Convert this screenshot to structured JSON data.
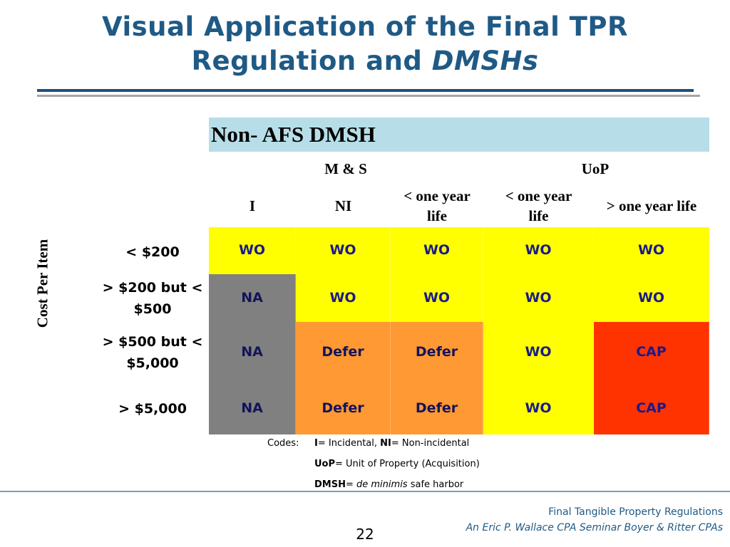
{
  "slide": {
    "title_line1": "Visual Application of the Final TPR",
    "title_line2_prefix": "Regulation and ",
    "title_line2_italic": "DMSHs"
  },
  "table": {
    "header": "Non- AFS DMSH",
    "group_ms": "M & S",
    "group_uop": "UoP",
    "col_i": "I",
    "col_ni": "NI",
    "col_ms_lt_line1": "< one year",
    "col_ms_lt_line2": "life",
    "col_uop_lt_line1": "< one year",
    "col_uop_lt_line2": "life",
    "col_uop_gt": "> one year life",
    "y_axis_label": "Cost Per Item",
    "rows": [
      {
        "label_line1": "< $200",
        "label_line2": "",
        "cells": [
          {
            "text": "WO",
            "color": "#ffff00"
          },
          {
            "text": "WO",
            "color": "#ffff00"
          },
          {
            "text": "WO",
            "color": "#ffff00"
          },
          {
            "text": "WO",
            "color": "#ffff00"
          },
          {
            "text": "WO",
            "color": "#ffff00"
          }
        ]
      },
      {
        "label_line1": "> $200 but <",
        "label_line2": "$500",
        "cells": [
          {
            "text": "NA",
            "color": "#808080"
          },
          {
            "text": "WO",
            "color": "#ffff00"
          },
          {
            "text": "WO",
            "color": "#ffff00"
          },
          {
            "text": "WO",
            "color": "#ffff00"
          },
          {
            "text": "WO",
            "color": "#ffff00"
          }
        ]
      },
      {
        "label_line1": "> $500 but <",
        "label_line2": "$5,000",
        "cells": [
          {
            "text": "NA",
            "color": "#808080"
          },
          {
            "text": "Defer",
            "color": "#ff9933"
          },
          {
            "text": "Defer",
            "color": "#ff9933"
          },
          {
            "text": "WO",
            "color": "#ffff00"
          },
          {
            "text": "CAP",
            "color": "#ff3300"
          }
        ]
      },
      {
        "label_line1": "> $5,000",
        "label_line2": "",
        "cells": [
          {
            "text": "NA",
            "color": "#808080"
          },
          {
            "text": "Defer",
            "color": "#ff9933"
          },
          {
            "text": "Defer",
            "color": "#ff9933"
          },
          {
            "text": "WO",
            "color": "#ffff00"
          },
          {
            "text": "CAP",
            "color": "#ff3300"
          }
        ]
      }
    ]
  },
  "legend": {
    "codes_label": "Codes:",
    "i_abbr": "I",
    "i_def": "= Incidental, ",
    "ni_abbr": "NI",
    "ni_def": "= Non-incidental",
    "uop_abbr": "UoP",
    "uop_def": "= Unit of Property (Acquisition)",
    "dmsh_abbr": "DMSH",
    "dmsh_eq": "= ",
    "dmsh_italic": "de minimis",
    "dmsh_rest": " safe harbor"
  },
  "footer": {
    "title": "Final Tangible Property Regulations",
    "subtitle": "An Eric P. Wallace CPA Seminar Boyer & Ritter CPAs",
    "page_number": "22"
  }
}
